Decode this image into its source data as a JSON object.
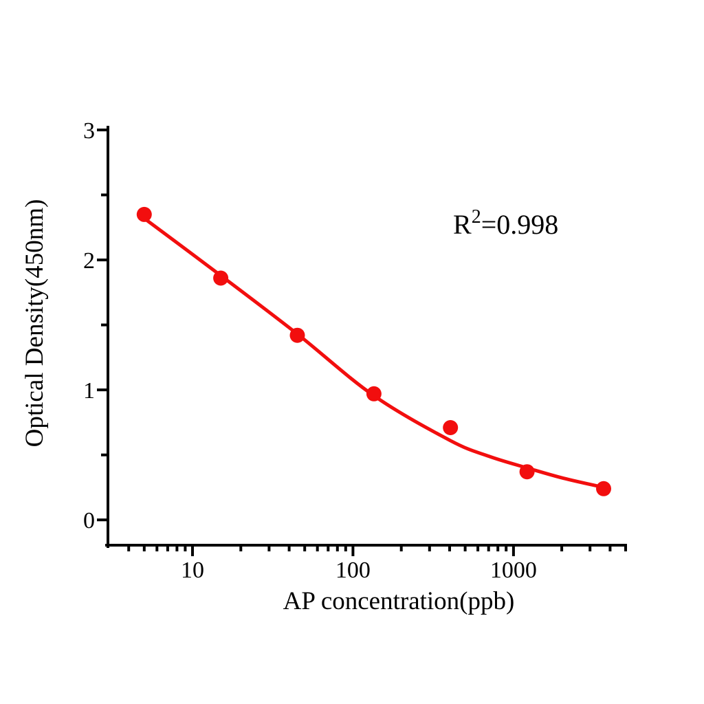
{
  "chart_data": {
    "type": "scatter",
    "title": "",
    "xlabel": "AP concentration(ppb)",
    "ylabel": "Optical Density(450nm)",
    "x_scale": "log",
    "y_scale": "linear",
    "xlim": [
      3,
      5000
    ],
    "ylim": [
      -0.2,
      3
    ],
    "grid": false,
    "legend": "none",
    "x_major_ticks": {
      "values": [
        10,
        100,
        1000
      ],
      "labels": [
        "10",
        "100",
        "1000"
      ]
    },
    "x_minor_ticks": [
      4,
      5,
      6,
      7,
      8,
      9,
      20,
      30,
      40,
      50,
      60,
      70,
      80,
      90,
      200,
      300,
      400,
      500,
      600,
      700,
      800,
      900,
      2000,
      3000,
      4000,
      5000
    ],
    "y_major_ticks": {
      "values": [
        0,
        1,
        2,
        3
      ],
      "labels": [
        "0",
        "1",
        "2",
        "3"
      ]
    },
    "y_minor_ticks": [
      0.5,
      1.5,
      2.5
    ],
    "annotation": {
      "base": "R",
      "sup": "2",
      "rest": "=0.998",
      "text": "R²=0.998"
    },
    "points": {
      "name": "standard-points",
      "x": [
        5,
        15,
        45,
        135,
        405,
        1215,
        3645
      ],
      "y": [
        2.35,
        1.86,
        1.42,
        0.97,
        0.71,
        0.37,
        0.24
      ]
    },
    "fit_curve": {
      "name": "logistic-fit",
      "x": [
        5,
        15,
        45,
        135,
        405,
        700,
        1215,
        2055,
        3645
      ],
      "y": [
        2.32,
        1.88,
        1.43,
        0.955,
        0.61,
        0.49,
        0.4,
        0.32,
        0.25
      ]
    },
    "colors": {
      "series": "#f20e0e",
      "axis": "#000000",
      "text": "#000000",
      "background": "#ffffff"
    }
  }
}
